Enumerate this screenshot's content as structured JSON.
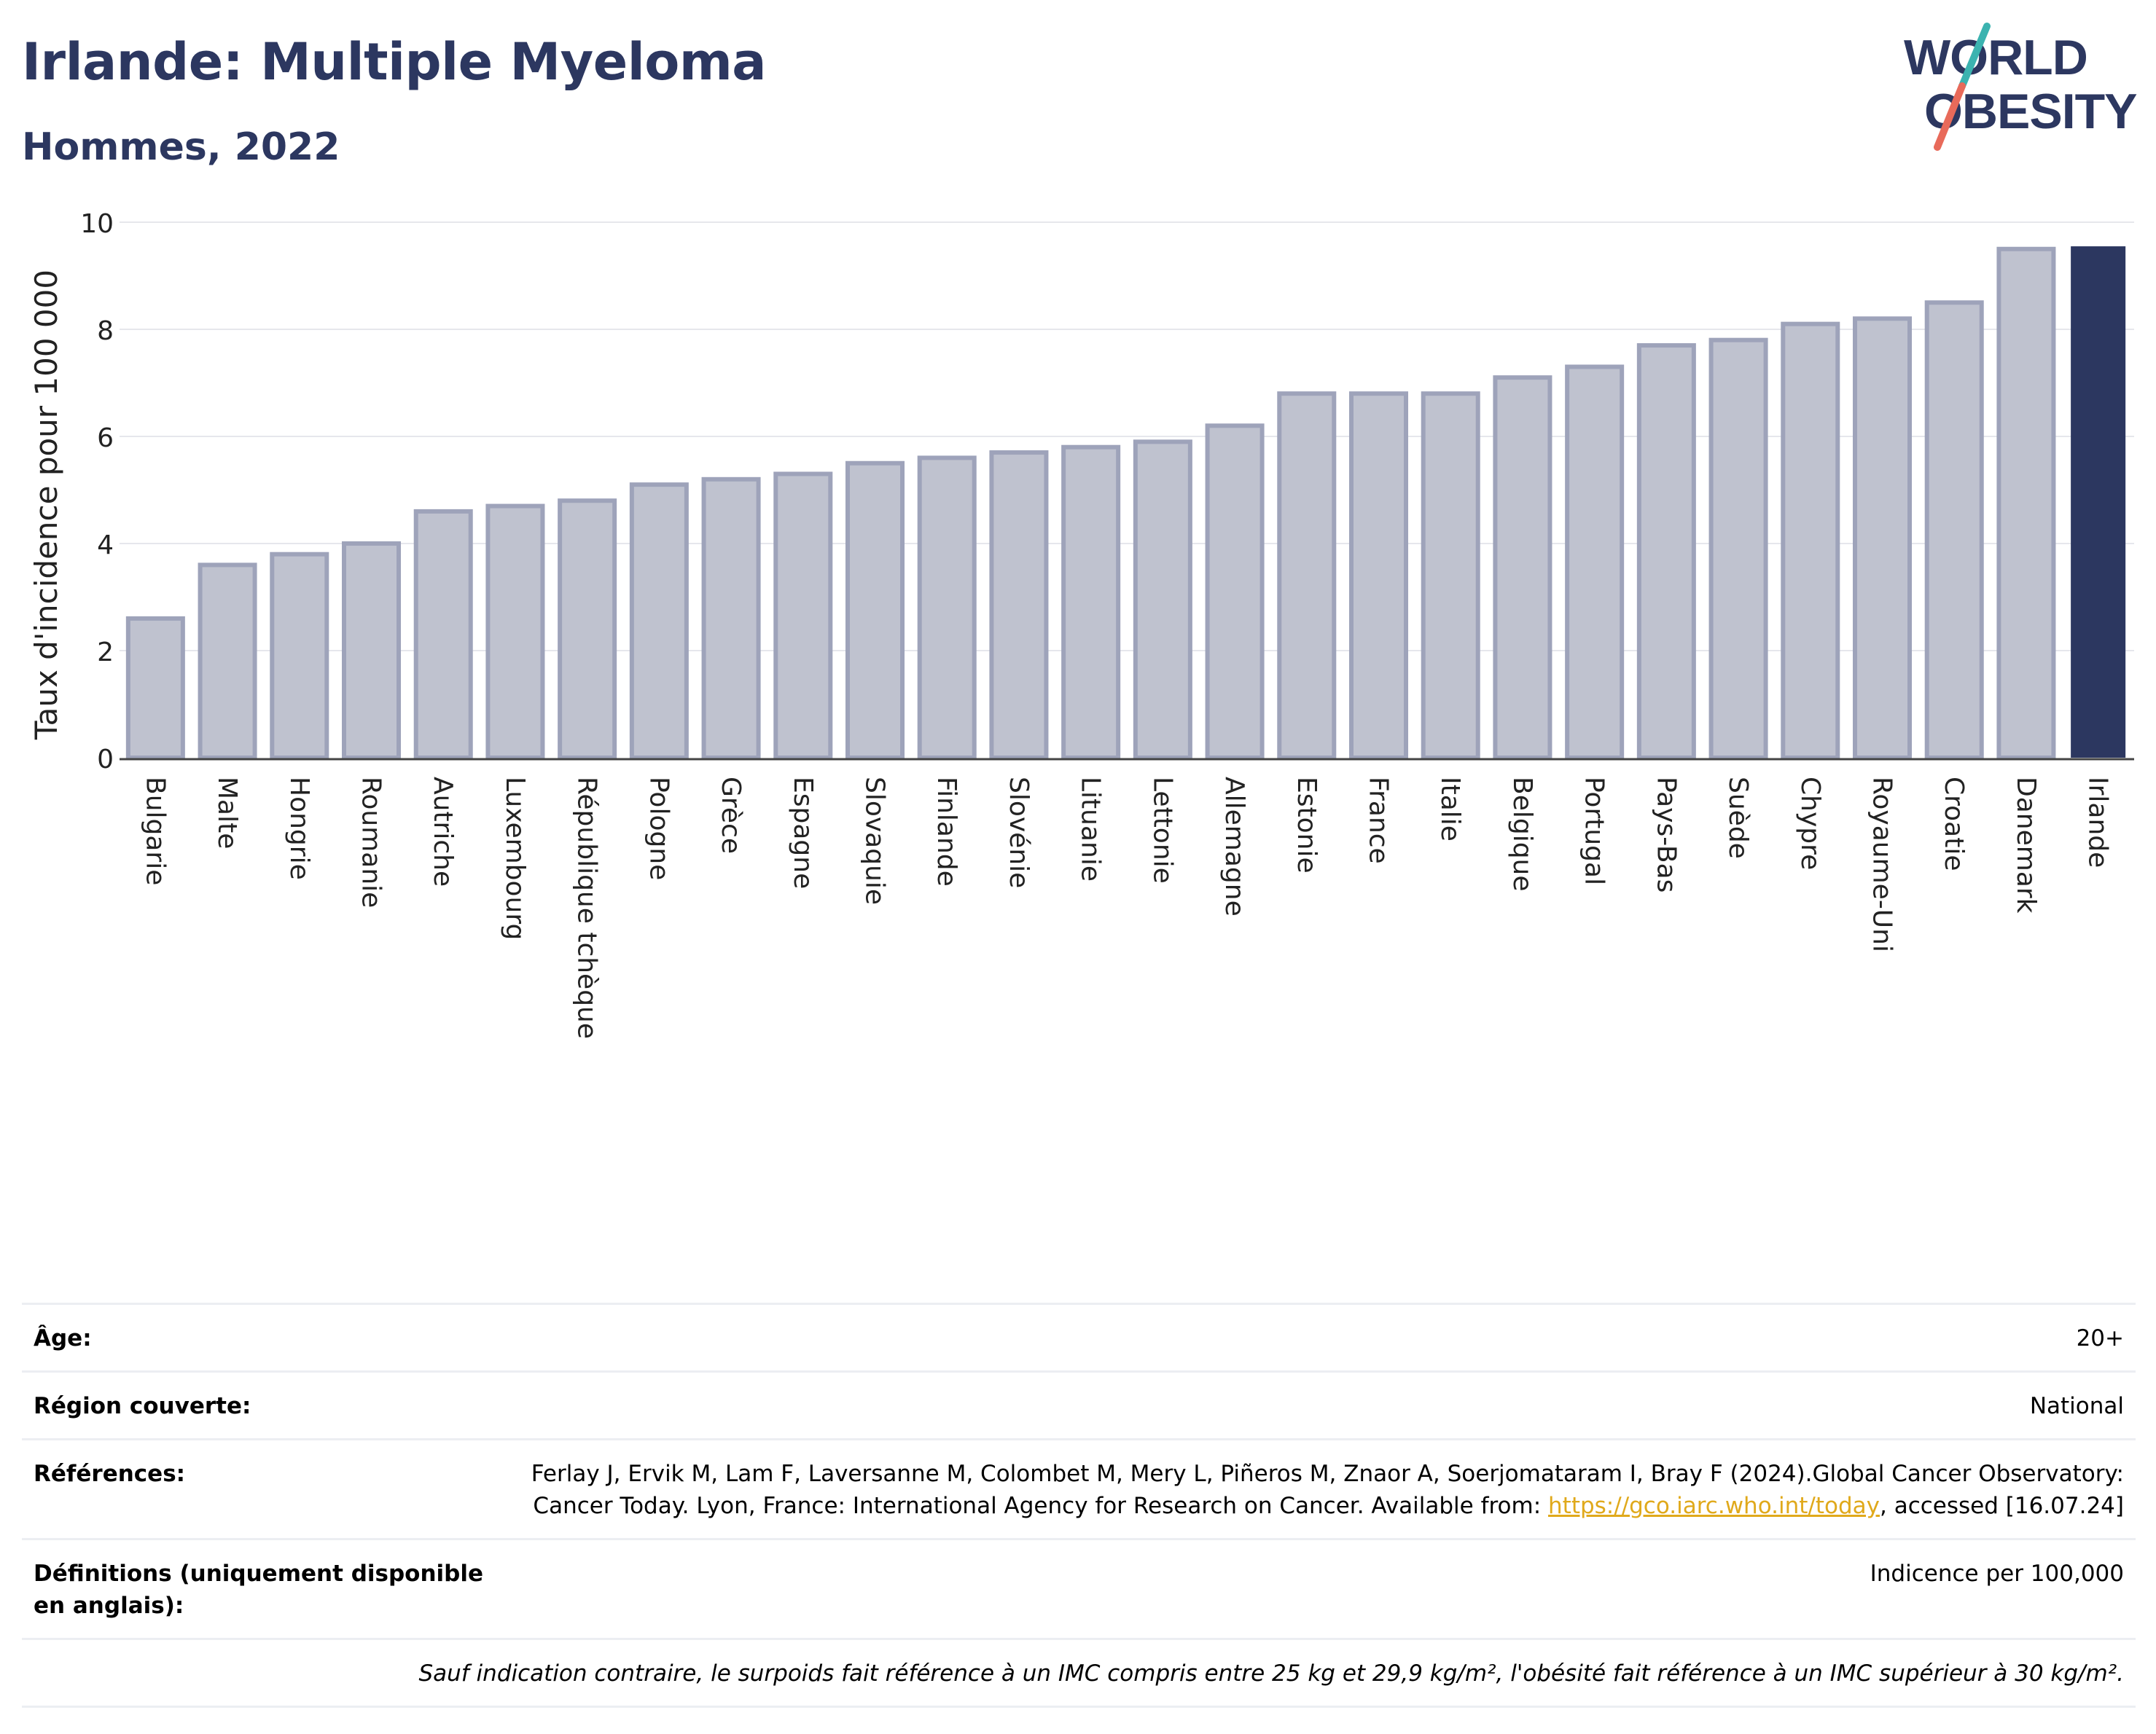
{
  "header": {
    "title": "Irlande: Multiple Myeloma",
    "subtitle": "Hommes, 2022",
    "logo_line1": "WORLD",
    "logo_line2": "OBESITY"
  },
  "colors": {
    "title": "#2c3760",
    "bar_fill": "#bfc2cf",
    "bar_edge": "#9ea3ba",
    "highlight": "#2c3760",
    "grid": "#e6e7ec",
    "link": "#e0a91b",
    "logo_teal": "#3bb3b0",
    "logo_coral": "#e86a5a"
  },
  "chart_data": {
    "type": "bar",
    "title": "",
    "xlabel": "",
    "ylabel": "Taux d'incidence pour 100 000",
    "ylim": [
      0,
      10
    ],
    "yticks": [
      0,
      2,
      4,
      6,
      8,
      10
    ],
    "grid": true,
    "highlight_category": "Irlande",
    "categories": [
      "Bulgarie",
      "Malte",
      "Hongrie",
      "Roumanie",
      "Autriche",
      "Luxembourg",
      "République tchèque",
      "Pologne",
      "Grèce",
      "Espagne",
      "Slovaquie",
      "Finlande",
      "Slovénie",
      "Lituanie",
      "Lettonie",
      "Allemagne",
      "Estonie",
      "France",
      "Italie",
      "Belgique",
      "Portugal",
      "Pays-Bas",
      "Suède",
      "Chypre",
      "Royaume-Uni",
      "Croatie",
      "Danemark",
      "Irlande"
    ],
    "values": [
      2.6,
      3.6,
      3.8,
      4.0,
      4.6,
      4.7,
      4.8,
      5.1,
      5.2,
      5.3,
      5.5,
      5.6,
      5.7,
      5.8,
      5.9,
      6.2,
      6.8,
      6.8,
      6.8,
      7.1,
      7.3,
      7.7,
      7.8,
      8.1,
      8.2,
      8.5,
      9.5,
      9.55
    ]
  },
  "meta": {
    "age_label": "Âge:",
    "age_value": "20+",
    "region_label": "Région couverte:",
    "region_value": "National",
    "refs_label": "Références:",
    "refs_text": "Ferlay J, Ervik M, Lam F, Laversanne M, Colombet M, Mery L, Piñeros M, Znaor A, Soerjomataram I, Bray F (2024).Global Cancer Observatory: Cancer Today. Lyon, France: International Agency for Research on Cancer. Available from: ",
    "refs_link": "https://gco.iarc.who.int/today",
    "refs_tail": ", accessed [16.07.24]",
    "def_label": "Définitions (uniquement disponible en anglais):",
    "def_value": "Indicence per 100,000",
    "note": "Sauf indication contraire, le surpoids fait référence à un IMC compris entre 25 kg et 29,9 kg/m², l'obésité fait référence à un IMC supérieur à 30 kg/m²."
  }
}
